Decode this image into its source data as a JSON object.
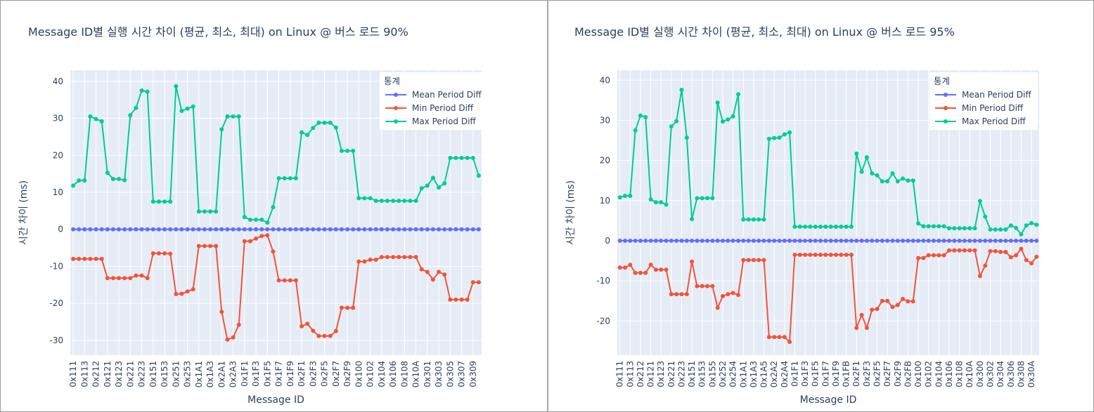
{
  "chart_data": [
    {
      "type": "line",
      "title": "Message ID별 실행 시간 차이 (평균, 최소, 최대) on Linux @ 버스 로드 90%",
      "xlabel": "Message ID",
      "ylabel": "시간 차이 (ms)",
      "ylim": [
        -34,
        43
      ],
      "yticks": [
        -30,
        -20,
        -10,
        0,
        10,
        20,
        30,
        40
      ],
      "legend_title": "통계",
      "legend_position": "top-right",
      "grid": true,
      "categories": [
        "0x111",
        "0x112",
        "0x113",
        "0x211",
        "0x212",
        "0x213",
        "0x121",
        "0x122",
        "0x123",
        "0x124",
        "0x221",
        "0x222",
        "0x223",
        "0x224",
        "0x151",
        "0x152",
        "0x153",
        "0x154",
        "0x251",
        "0x252",
        "0x253",
        "0x254",
        "0x1A1",
        "0x1A2",
        "0x1A3",
        "0x1A4",
        "0x2A1",
        "0x2A2",
        "0x2A3",
        "0x2A4",
        "0x1F1",
        "0x1F2",
        "0x1F3",
        "0x1F4",
        "0x1F5",
        "0x1F6",
        "0x1F7",
        "0x1F8",
        "0x1F9",
        "0x1FA",
        "0x2F1",
        "0x2F2",
        "0x2F3",
        "0x2F4",
        "0x2F5",
        "0x2F6",
        "0x2F7",
        "0x2F8",
        "0x2F9",
        "0x2FA",
        "0x100",
        "0x101",
        "0x102",
        "0x103",
        "0x104",
        "0x105",
        "0x106",
        "0x107",
        "0x108",
        "0x109",
        "0x10A",
        "0x300",
        "0x301",
        "0x302",
        "0x303",
        "0x304",
        "0x305",
        "0x306",
        "0x307",
        "0x308",
        "0x309",
        "0x30A"
      ],
      "xtick_labels": [
        "0x111",
        "0x113",
        "0x212",
        "0x121",
        "0x123",
        "0x221",
        "0x223",
        "0x151",
        "0x153",
        "0x251",
        "0x253",
        "0x1A1",
        "0x1A3",
        "0x2A1",
        "0x2A3",
        "0x1F1",
        "0x1F3",
        "0x1F5",
        "0x1F7",
        "0x1F9",
        "0x2F1",
        "0x2F3",
        "0x2F5",
        "0x2F7",
        "0x2F9",
        "0x100",
        "0x102",
        "0x104",
        "0x106",
        "0x108",
        "0x10A",
        "0x301",
        "0x303",
        "0x305",
        "0x307",
        "0x309"
      ],
      "series": [
        {
          "name": "Mean Period Diff",
          "color": "#636efa",
          "values": [
            0,
            0,
            0,
            0,
            0,
            0,
            0,
            0,
            0,
            0,
            0,
            0,
            0,
            0,
            0,
            0,
            0,
            0,
            0,
            0,
            0,
            0,
            0,
            0,
            0,
            0,
            0,
            0,
            0,
            0,
            0,
            0,
            0,
            0,
            0,
            0,
            0,
            0,
            0,
            0,
            0,
            0,
            0,
            0,
            0,
            0,
            0,
            0,
            0,
            0,
            0,
            0,
            0,
            0,
            0,
            0,
            0,
            0,
            0,
            0,
            0,
            0,
            0,
            0,
            0,
            0,
            0,
            0,
            0,
            0,
            0,
            0
          ]
        },
        {
          "name": "Min Period Diff",
          "color": "#ef553b",
          "values": [
            -8,
            -8,
            -8,
            -8,
            -8,
            -8,
            -13.2,
            -13.2,
            -13.2,
            -13.2,
            -13.2,
            -12.5,
            -12.5,
            -13.2,
            -6.5,
            -6.5,
            -6.5,
            -6.6,
            -17.5,
            -17.4,
            -16.8,
            -16.2,
            -4.5,
            -4.5,
            -4.5,
            -4.5,
            -22.3,
            -29.8,
            -29.2,
            -25.8,
            -3.2,
            -3.2,
            -2.5,
            -1.8,
            -1.6,
            -6,
            -13.8,
            -13.8,
            -13.8,
            -13.8,
            -26.2,
            -25.5,
            -27.4,
            -28.8,
            -28.8,
            -28.8,
            -27.5,
            -21.2,
            -21.2,
            -21.2,
            -8.7,
            -8.7,
            -8.2,
            -8.2,
            -7.5,
            -7.5,
            -7.5,
            -7.5,
            -7.5,
            -7.5,
            -7.5,
            -10.8,
            -11.5,
            -13.6,
            -11.5,
            -12.2,
            -19,
            -19,
            -19,
            -19,
            -14.3,
            -14.3
          ]
        },
        {
          "name": "Max Period Diff",
          "color": "#00cc96",
          "values": [
            11.8,
            13.2,
            13.2,
            30.5,
            29.8,
            29.2,
            15.3,
            13.6,
            13.6,
            13.3,
            30.8,
            32.8,
            37.5,
            37.2,
            7.5,
            7.5,
            7.5,
            7.5,
            38.7,
            32,
            32.6,
            33.2,
            4.8,
            4.8,
            4.8,
            4.8,
            27,
            30.5,
            30.5,
            30.5,
            3.3,
            2.6,
            2.6,
            2.6,
            1.8,
            6,
            13.8,
            13.8,
            13.8,
            13.8,
            26.2,
            25.5,
            27.4,
            28.8,
            28.8,
            28.8,
            27.5,
            21.2,
            21.2,
            21.2,
            8.4,
            8.4,
            8.4,
            7.7,
            7.7,
            7.7,
            7.7,
            7.7,
            7.7,
            7.7,
            7.7,
            11.1,
            11.8,
            13.9,
            11.3,
            12.4,
            19.3,
            19.3,
            19.3,
            19.3,
            19.3,
            14.5
          ]
        }
      ]
    },
    {
      "type": "line",
      "title": "Message ID별 실행 시간 차이 (평균, 최소, 최대) on Linux @ 버스 로드 95%",
      "xlabel": "Message ID",
      "ylabel": "시간 차이 (ms)",
      "ylim": [
        -28.5,
        42.5
      ],
      "yticks": [
        -20,
        -10,
        0,
        10,
        20,
        30,
        40
      ],
      "legend_title": "통계",
      "legend_position": "top-right",
      "grid": true,
      "categories": [
        "0x111",
        "0x112",
        "0x113",
        "0x211",
        "0x212",
        "0x213",
        "0x121",
        "0x122",
        "0x123",
        "0x124",
        "0x221",
        "0x222",
        "0x223",
        "0x224",
        "0x151",
        "0x152",
        "0x153",
        "0x154",
        "0x155",
        "0x251",
        "0x252",
        "0x253",
        "0x254",
        "0x255",
        "0x1A1",
        "0x1A2",
        "0x1A3",
        "0x1A4",
        "0x1A5",
        "0x2A1",
        "0x2A2",
        "0x2A3",
        "0x2A4",
        "0x2A5",
        "0x1F1",
        "0x1F2",
        "0x1F3",
        "0x1F4",
        "0x1F5",
        "0x1F6",
        "0x1F7",
        "0x1F8",
        "0x1F9",
        "0x1FA",
        "0x1FB",
        "0x1FC",
        "0x2F1",
        "0x2F2",
        "0x2F3",
        "0x2F4",
        "0x2F5",
        "0x2F6",
        "0x2F7",
        "0x2F8",
        "0x2F9",
        "0x2FA",
        "0x2FB",
        "0x2FC",
        "0x100",
        "0x101",
        "0x102",
        "0x103",
        "0x104",
        "0x105",
        "0x106",
        "0x107",
        "0x108",
        "0x109",
        "0x10A",
        "0x10B",
        "0x300",
        "0x301",
        "0x302",
        "0x303",
        "0x304",
        "0x305",
        "0x306",
        "0x307",
        "0x308",
        "0x309",
        "0x30A",
        "0x30B"
      ],
      "xtick_labels": [
        "0x111",
        "0x113",
        "0x212",
        "0x121",
        "0x123",
        "0x221",
        "0x223",
        "0x151",
        "0x153",
        "0x155",
        "0x252",
        "0x254",
        "0x1A1",
        "0x1A3",
        "0x1A5",
        "0x2A2",
        "0x2A4",
        "0x1F1",
        "0x1F3",
        "0x1F5",
        "0x1F7",
        "0x1F9",
        "0x1FB",
        "0x2F1",
        "0x2F3",
        "0x2F5",
        "0x2F7",
        "0x2F9",
        "0x2FB",
        "0x100",
        "0x102",
        "0x104",
        "0x106",
        "0x108",
        "0x10A",
        "0x300",
        "0x302",
        "0x304",
        "0x306",
        "0x308",
        "0x30A"
      ],
      "series": [
        {
          "name": "Mean Period Diff",
          "color": "#636efa",
          "values": [
            0,
            0,
            0,
            0,
            0,
            0,
            0,
            0,
            0,
            0,
            0,
            0,
            0,
            0,
            0,
            0,
            0,
            0,
            0,
            0,
            0,
            0,
            0,
            0,
            0,
            0,
            0,
            0,
            0,
            0,
            0,
            0,
            0,
            0,
            0,
            0,
            0,
            0,
            0,
            0,
            0,
            0,
            0,
            0,
            0,
            0,
            0,
            0,
            0,
            0,
            0,
            0,
            0,
            0,
            0,
            0,
            0,
            0,
            0,
            0,
            0,
            0,
            0,
            0,
            0,
            0,
            0,
            0,
            0,
            0,
            0,
            0,
            0,
            0,
            0,
            0,
            0,
            0,
            0,
            0,
            0,
            0
          ]
        },
        {
          "name": "Min Period Diff",
          "color": "#ef553b",
          "values": [
            -6.7,
            -6.7,
            -6,
            -8,
            -8,
            -8,
            -6,
            -7.2,
            -7.2,
            -7.2,
            -13.3,
            -13.3,
            -13.3,
            -13.3,
            -5.2,
            -11.3,
            -11.3,
            -11.3,
            -11.3,
            -16.7,
            -13.8,
            -13.3,
            -13,
            -13.5,
            -4.8,
            -4.8,
            -4.8,
            -4.8,
            -4.8,
            -24,
            -24,
            -24,
            -24,
            -25.2,
            -3.5,
            -3.5,
            -3.5,
            -3.5,
            -3.5,
            -3.5,
            -3.5,
            -3.5,
            -3.5,
            -3.5,
            -3.5,
            -3.5,
            -21.7,
            -18.5,
            -21.7,
            -17.2,
            -17,
            -15,
            -15,
            -16.5,
            -16,
            -14.5,
            -15.1,
            -15.1,
            -4.3,
            -4.3,
            -3.6,
            -3.6,
            -3.6,
            -3.6,
            -2.4,
            -2.4,
            -2.4,
            -2.4,
            -2.4,
            -2.4,
            -8.8,
            -6.2,
            -2.6,
            -2.6,
            -2.8,
            -2.8,
            -4.1,
            -3.6,
            -2,
            -4.8,
            -5.6,
            -4
          ]
        },
        {
          "name": "Max Period Diff",
          "color": "#00cc96",
          "values": [
            10.8,
            11.2,
            11.2,
            27.5,
            31.2,
            30.8,
            10.3,
            9.6,
            9.6,
            9,
            28.5,
            29.8,
            37.6,
            25.7,
            5.4,
            10.6,
            10.6,
            10.6,
            10.6,
            34.4,
            29.7,
            30.2,
            31,
            36.5,
            5.3,
            5.3,
            5.3,
            5.3,
            5.3,
            25.4,
            25.6,
            25.7,
            26.5,
            27,
            3.5,
            3.5,
            3.5,
            3.5,
            3.5,
            3.5,
            3.5,
            3.5,
            3.5,
            3.5,
            3.5,
            3.5,
            21.7,
            17.2,
            20.8,
            16.8,
            16.3,
            14.8,
            14.8,
            16.8,
            14.8,
            15.5,
            15,
            15,
            4.3,
            3.6,
            3.6,
            3.6,
            3.6,
            3.6,
            3.1,
            3.1,
            3.1,
            3.1,
            3.1,
            3.1,
            9.9,
            6,
            2.8,
            2.8,
            2.8,
            2.8,
            3.8,
            3.2,
            1.6,
            3.8,
            4.4,
            4
          ]
        }
      ]
    }
  ]
}
